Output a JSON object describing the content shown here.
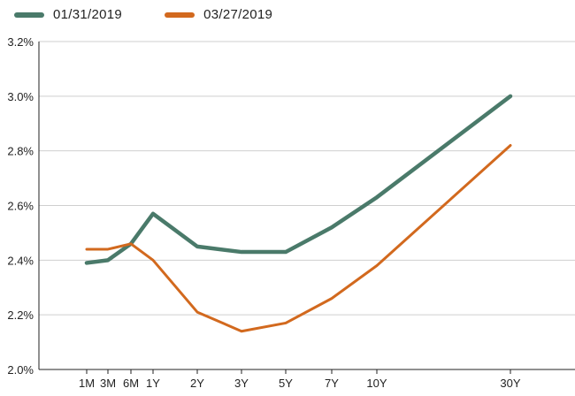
{
  "chart_data": {
    "type": "line",
    "title": "",
    "xlabel": "",
    "ylabel": "",
    "categories": [
      "1M",
      "3M",
      "6M",
      "1Y",
      "2Y",
      "3Y",
      "5Y",
      "7Y",
      "10Y",
      "30Y"
    ],
    "y_ticks": [
      "2.0%",
      "2.2%",
      "2.4%",
      "2.6%",
      "2.8%",
      "3.0%",
      "3.2%"
    ],
    "y_tick_values": [
      2.0,
      2.2,
      2.4,
      2.6,
      2.8,
      3.0,
      3.2
    ],
    "ylim": [
      2.0,
      3.2
    ],
    "x_scale_maturity_years": [
      0.0833,
      0.25,
      0.5,
      1,
      2,
      3,
      5,
      7,
      10,
      30
    ],
    "grid": "horizontal",
    "legend_position": "top-left",
    "series": [
      {
        "name": "01/31/2019",
        "color": "#4a7a6a",
        "values": [
          2.39,
          2.4,
          2.46,
          2.57,
          2.45,
          2.43,
          2.43,
          2.52,
          2.63,
          3.0
        ]
      },
      {
        "name": "03/27/2019",
        "color": "#d2691e",
        "values": [
          2.44,
          2.44,
          2.46,
          2.4,
          2.21,
          2.14,
          2.17,
          2.26,
          2.38,
          2.82
        ]
      }
    ]
  }
}
